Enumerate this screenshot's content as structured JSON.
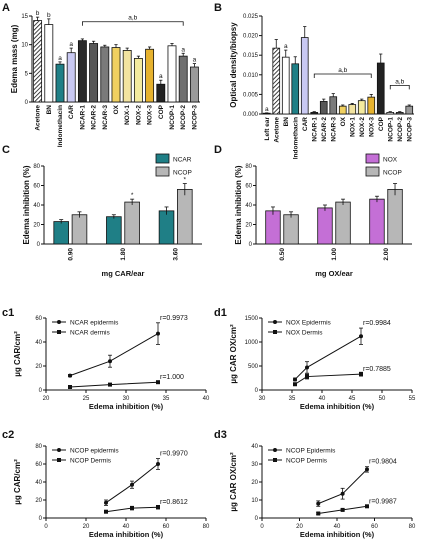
{
  "colors": {
    "ncar": "#1f7f86",
    "ncop": "#b7b7b7",
    "nox": "#c46fd6",
    "dark": "#222222",
    "ink": "#111111"
  },
  "panels": {
    "A": "A",
    "B": "B",
    "C": "C",
    "D": "D",
    "c1": "c1",
    "c2": "c2",
    "d1": "d1",
    "d3": "d3"
  },
  "chart_data": [
    {
      "id": "A",
      "type": "bar",
      "ylabel": "Edema mass (mg)",
      "ylim": [
        0,
        15
      ],
      "yticks": [
        0,
        5,
        10,
        15
      ],
      "categories": [
        "Acetone",
        "BN",
        "Indomethacin",
        "CAR",
        "NCAR-1",
        "NCAR-2",
        "NCAR-3",
        "OX",
        "NOX-1",
        "NOX-2",
        "NOX-3",
        "COP",
        "NCOP-1",
        "NCOP-2",
        "NCOP-3"
      ],
      "values": [
        14.2,
        13.5,
        6.6,
        8.6,
        10.7,
        10.2,
        9.6,
        9.5,
        9.0,
        7.6,
        9.2,
        3.1,
        9.8,
        8.0,
        6.1
      ],
      "errors": [
        0.6,
        1.0,
        0.4,
        0.8,
        0.3,
        0.4,
        0.3,
        0.5,
        0.4,
        0.4,
        0.4,
        0.7,
        0.4,
        0.5,
        0.6
      ],
      "colors": [
        "hatch",
        "white",
        "#1f7f86",
        "#c9c9f2",
        "#2b2b2b",
        "#585858",
        "#7a7a7a",
        "#f0d060",
        "#f2e3a0",
        "#f4ea9e",
        "#e6b22e",
        "#222222",
        "#ffffff",
        "#6f6f6f",
        "#9a9a9a"
      ],
      "letters": [
        "b",
        "b",
        "a",
        "a",
        "",
        "",
        "",
        "",
        "",
        "",
        "",
        "a",
        "",
        "a",
        "a"
      ],
      "bracket": {
        "from": 4,
        "to": 13,
        "label": "a,b"
      }
    },
    {
      "id": "B",
      "type": "bar",
      "ylabel": "Optical density/biopsy",
      "ylim": [
        0,
        0.025
      ],
      "yticks": [
        0,
        0.005,
        0.01,
        0.015,
        0.02,
        0.025
      ],
      "ytick_labels": [
        "0.000",
        "0.005",
        "0.010",
        "0.015",
        "0.020",
        "0.025"
      ],
      "categories": [
        "Left ear",
        "Acetone",
        "BN",
        "Indomethacin",
        "CAR",
        "NCAR-1",
        "NCAR-2",
        "NCAR-3",
        "OX",
        "NOX-1",
        "NOX-2",
        "NOX-3",
        "COP",
        "NCOP-1",
        "NCOP-2",
        "NCOP-3"
      ],
      "values": [
        0.0002,
        0.0168,
        0.0145,
        0.0128,
        0.0195,
        0.0004,
        0.0032,
        0.0044,
        0.002,
        0.0024,
        0.0034,
        0.0043,
        0.013,
        0.0004,
        0.0004,
        0.002
      ],
      "errors": [
        0.0001,
        0.0022,
        0.0018,
        0.0018,
        0.0028,
        0.0002,
        0.0006,
        0.0008,
        0.0003,
        0.0003,
        0.0004,
        0.0007,
        0.0023,
        0.0002,
        0.0002,
        0.0003
      ],
      "colors": [
        "white",
        "hatch",
        "white",
        "#1f7f86",
        "#c9c9f2",
        "#2b2b2b",
        "#585858",
        "#7a7a7a",
        "#f0d060",
        "#f2e3a0",
        "#f4ea9e",
        "#e6b22e",
        "#222222",
        "#ffffff",
        "#6f6f6f",
        "#9a9a9a"
      ],
      "letters": [
        "a",
        "",
        "a",
        "",
        "",
        "",
        "",
        "",
        "",
        "",
        "",
        "",
        "",
        "",
        "",
        ""
      ],
      "brackets": [
        {
          "from": 5,
          "to": 11,
          "label": "a,b"
        },
        {
          "from": 13,
          "to": 15,
          "label": "a,b"
        }
      ]
    },
    {
      "id": "C",
      "type": "bar",
      "ylabel": "Edema inhibition (%)",
      "xlabel": "mg CAR/ear",
      "ylim": [
        0,
        80
      ],
      "yticks": [
        0,
        20,
        40,
        60,
        80
      ],
      "categories": [
        "0.90",
        "1.80",
        "3.60"
      ],
      "series": [
        {
          "name": "NCAR",
          "values": [
            23,
            28,
            34
          ],
          "errors": [
            2,
            2,
            4
          ]
        },
        {
          "name": "NCOP",
          "values": [
            30,
            43,
            56
          ],
          "errors": [
            3,
            3,
            6
          ]
        }
      ],
      "stars": [
        false,
        true,
        true
      ],
      "legend": "top-right"
    },
    {
      "id": "D",
      "type": "bar",
      "ylabel": "Edema inhibition (%)",
      "xlabel": "mg OX/ear",
      "ylim": [
        0,
        80
      ],
      "yticks": [
        0,
        20,
        40,
        60,
        80
      ],
      "categories": [
        "0.50",
        "1.00",
        "2.00"
      ],
      "series": [
        {
          "name": "NOX",
          "values": [
            34,
            37,
            46
          ],
          "errors": [
            4,
            3,
            3
          ]
        },
        {
          "name": "NCOP",
          "values": [
            30,
            43,
            56
          ],
          "errors": [
            3,
            3,
            6
          ]
        }
      ],
      "legend": "top-right"
    },
    {
      "id": "c1",
      "type": "line",
      "ylabel": "µg CAR/cm²",
      "xlabel": "Edema inhibition (%)",
      "xlim": [
        20,
        40
      ],
      "ylim": [
        0,
        60
      ],
      "xticks": [
        20,
        25,
        30,
        35,
        40
      ],
      "yticks": [
        0,
        20,
        40,
        60
      ],
      "series": [
        {
          "name": "NCAR epidermis",
          "marker": "circle",
          "x": [
            23,
            28,
            34
          ],
          "y": [
            12,
            24,
            47
          ],
          "errors": [
            1,
            5,
            9
          ],
          "r": "r=0.9973"
        },
        {
          "name": "NCAR dermis",
          "marker": "square",
          "x": [
            23,
            28,
            34
          ],
          "y": [
            2.5,
            4.5,
            6.5
          ],
          "errors": [
            0.5,
            0.5,
            0.5
          ],
          "r": "r=1.000"
        }
      ],
      "legend": "top-left"
    },
    {
      "id": "d1",
      "type": "line",
      "ylabel": "µg CAR OX/cm²",
      "xlabel": "Edema inhibition (%)",
      "xlim": [
        30,
        55
      ],
      "ylim": [
        0,
        1500
      ],
      "xticks": [
        30,
        35,
        40,
        45,
        50,
        55
      ],
      "yticks": [
        0,
        500,
        1000,
        1500
      ],
      "series": [
        {
          "name": "NOX Epidermis",
          "marker": "circle",
          "x": [
            35.5,
            37.5,
            46.5
          ],
          "y": [
            220,
            470,
            1120
          ],
          "errors": [
            30,
            120,
            170
          ],
          "r": "r=0.9984"
        },
        {
          "name": "NOX Dermis",
          "marker": "square",
          "x": [
            35.5,
            37.5,
            46.5
          ],
          "y": [
            120,
            280,
            330
          ],
          "errors": [
            20,
            50,
            40
          ],
          "r": "r=0.7885"
        }
      ],
      "legend": "top-left"
    },
    {
      "id": "c2",
      "type": "line",
      "ylabel": "µg CAR/cm²",
      "xlabel": "Edema inhibition (%)",
      "xlim": [
        0,
        80
      ],
      "ylim": [
        0,
        80
      ],
      "xticks": [
        0,
        20,
        40,
        60,
        80
      ],
      "yticks": [
        0,
        20,
        40,
        60,
        80
      ],
      "series": [
        {
          "name": "NCOP epidermis",
          "marker": "circle",
          "x": [
            30,
            43,
            56
          ],
          "y": [
            17,
            37,
            60
          ],
          "errors": [
            3,
            4,
            6
          ],
          "r": "r=0.9970"
        },
        {
          "name": "NCOP Dermis",
          "marker": "square",
          "x": [
            30,
            43,
            56
          ],
          "y": [
            7,
            11,
            12
          ],
          "errors": [
            1,
            2,
            2
          ],
          "r": "r=0.8612"
        }
      ],
      "legend": "top-left"
    },
    {
      "id": "d3",
      "type": "line",
      "ylabel": "µg CAR OX/cm²",
      "xlabel": "Edema inhibition (%)",
      "xlim": [
        0,
        80
      ],
      "ylim": [
        0,
        40
      ],
      "xticks": [
        0,
        20,
        40,
        60,
        80
      ],
      "yticks": [
        0,
        10,
        20,
        30,
        40
      ],
      "series": [
        {
          "name": "NCOP Epidermis",
          "marker": "circle",
          "x": [
            30,
            43,
            56
          ],
          "y": [
            8,
            13.5,
            27
          ],
          "errors": [
            1.5,
            3,
            1.5
          ],
          "r": "r=0.9804"
        },
        {
          "name": "NCOP Dermis",
          "marker": "square",
          "x": [
            30,
            43,
            56
          ],
          "y": [
            2.5,
            4.5,
            6.5
          ],
          "errors": [
            0.5,
            0.5,
            0.5
          ],
          "r": "r=0.9987"
        }
      ],
      "legend": "top-left"
    }
  ]
}
